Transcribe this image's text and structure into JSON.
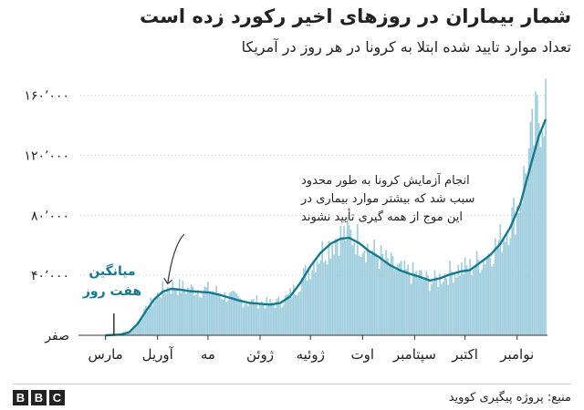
{
  "header": {
    "title": "شمار بیماران در روزهای اخیر رکورد زده است",
    "subtitle": "تعداد موارد تایید شده ابتلا به کرونا در هر روز در آمریکا"
  },
  "footer": {
    "source": "منبع: پروژه پیگیری کووید",
    "logo_letters": [
      "B",
      "B",
      "C"
    ]
  },
  "colors": {
    "bars": "#9ecddd",
    "line": "#137a8f",
    "label_line": "#137a8f",
    "text": "#222222",
    "grid": "#d0d0d0",
    "axis": "#333333"
  },
  "chart_data": {
    "type": "bar",
    "title": "شمار بیماران در روزهای اخیر رکورد زده است",
    "subtitle": "تعداد موارد تایید شده ابتلا به کرونا در هر روز در آمریکا",
    "xlabel": "",
    "ylabel": "",
    "x_range": [
      "2020-02-15",
      "2020-11-18"
    ],
    "ylim": [
      0,
      175000
    ],
    "yticks": [
      {
        "value": 0,
        "label": "صفر"
      },
      {
        "value": 40000,
        "label": "۴۰٬۰۰۰"
      },
      {
        "value": 80000,
        "label": "۸۰٬۰۰۰"
      },
      {
        "value": 120000,
        "label": "۱۲۰٬۰۰۰"
      },
      {
        "value": 160000,
        "label": "۱۶۰٬۰۰۰"
      }
    ],
    "xticks": [
      {
        "date": "2020-03-01",
        "label": "مارس"
      },
      {
        "date": "2020-04-01",
        "label": "آوریل"
      },
      {
        "date": "2020-05-01",
        "label": "مه"
      },
      {
        "date": "2020-06-01",
        "label": "ژوئن"
      },
      {
        "date": "2020-07-01",
        "label": "ژوئیه"
      },
      {
        "date": "2020-08-01",
        "label": "اوت"
      },
      {
        "date": "2020-09-01",
        "label": "سپتامبر"
      },
      {
        "date": "2020-10-01",
        "label": "اکتبر"
      },
      {
        "date": "2020-11-01",
        "label": "نوامبر"
      }
    ],
    "grid": {
      "horizontal": true,
      "style": "dotted"
    },
    "series": [
      {
        "name": "",
        "kind": "daily_bars",
        "points": [
          [
            "2020-03-01",
            0
          ],
          [
            "2020-03-05",
            200
          ],
          [
            "2020-03-10",
            700
          ],
          [
            "2020-03-15",
            2500
          ],
          [
            "2020-03-18",
            5000
          ],
          [
            "2020-03-21",
            10000
          ],
          [
            "2020-03-24",
            15000
          ],
          [
            "2020-03-27",
            20000
          ],
          [
            "2020-03-30",
            24000
          ],
          [
            "2020-04-02",
            28000
          ],
          [
            "2020-04-05",
            31000
          ],
          [
            "2020-04-08",
            32000
          ],
          [
            "2020-04-12",
            32500
          ],
          [
            "2020-04-16",
            31500
          ],
          [
            "2020-04-20",
            30500
          ],
          [
            "2020-04-24",
            31000
          ],
          [
            "2020-04-28",
            30500
          ],
          [
            "2020-05-02",
            30000
          ],
          [
            "2020-05-06",
            29000
          ],
          [
            "2020-05-10",
            26500
          ],
          [
            "2020-05-15",
            25500
          ],
          [
            "2020-05-20",
            23500
          ],
          [
            "2020-05-25",
            22000
          ],
          [
            "2020-05-30",
            22500
          ],
          [
            "2020-06-04",
            21500
          ],
          [
            "2020-06-09",
            21000
          ],
          [
            "2020-06-14",
            23000
          ],
          [
            "2020-06-18",
            26000
          ],
          [
            "2020-06-22",
            31000
          ],
          [
            "2020-06-26",
            38000
          ],
          [
            "2020-06-30",
            44000
          ],
          [
            "2020-07-04",
            51000
          ],
          [
            "2020-07-08",
            56000
          ],
          [
            "2020-07-12",
            60000
          ],
          [
            "2020-07-16",
            65000
          ],
          [
            "2020-07-20",
            66500
          ],
          [
            "2020-07-24",
            67500
          ],
          [
            "2020-07-28",
            65000
          ],
          [
            "2020-08-01",
            62500
          ],
          [
            "2020-08-05",
            57500
          ],
          [
            "2020-08-09",
            54000
          ],
          [
            "2020-08-13",
            51000
          ],
          [
            "2020-08-17",
            47000
          ],
          [
            "2020-08-21",
            44500
          ],
          [
            "2020-08-25",
            42000
          ],
          [
            "2020-08-29",
            41500
          ],
          [
            "2020-09-02",
            40500
          ],
          [
            "2020-09-06",
            38500
          ],
          [
            "2020-09-10",
            36000
          ],
          [
            "2020-09-14",
            36500
          ],
          [
            "2020-09-18",
            40500
          ],
          [
            "2020-09-22",
            42000
          ],
          [
            "2020-09-26",
            44000
          ],
          [
            "2020-09-30",
            44500
          ],
          [
            "2020-10-04",
            45000
          ],
          [
            "2020-10-08",
            48500
          ],
          [
            "2020-10-12",
            51500
          ],
          [
            "2020-10-16",
            55500
          ],
          [
            "2020-10-20",
            60000
          ],
          [
            "2020-10-24",
            68000
          ],
          [
            "2020-10-28",
            76000
          ],
          [
            "2020-11-01",
            85000
          ],
          [
            "2020-11-04",
            98000
          ],
          [
            "2020-11-07",
            114000
          ],
          [
            "2020-11-10",
            128000
          ],
          [
            "2020-11-13",
            143000
          ],
          [
            "2020-11-16",
            154000
          ],
          [
            "2020-11-18",
            157000
          ]
        ]
      },
      {
        "name": "میانگین هفت روز",
        "kind": "line",
        "points": [
          [
            "2020-03-01",
            0
          ],
          [
            "2020-03-10",
            500
          ],
          [
            "2020-03-15",
            2000
          ],
          [
            "2020-03-20",
            7500
          ],
          [
            "2020-03-25",
            16000
          ],
          [
            "2020-03-30",
            24000
          ],
          [
            "2020-04-04",
            29000
          ],
          [
            "2020-04-09",
            31000
          ],
          [
            "2020-04-14",
            30500
          ],
          [
            "2020-04-20",
            29500
          ],
          [
            "2020-04-26",
            29000
          ],
          [
            "2020-05-02",
            28500
          ],
          [
            "2020-05-08",
            27000
          ],
          [
            "2020-05-14",
            25000
          ],
          [
            "2020-05-20",
            23000
          ],
          [
            "2020-05-26",
            21500
          ],
          [
            "2020-06-01",
            21000
          ],
          [
            "2020-06-07",
            20500
          ],
          [
            "2020-06-13",
            21500
          ],
          [
            "2020-06-19",
            26000
          ],
          [
            "2020-06-25",
            35000
          ],
          [
            "2020-07-01",
            46000
          ],
          [
            "2020-07-07",
            55000
          ],
          [
            "2020-07-13",
            61000
          ],
          [
            "2020-07-19",
            64500
          ],
          [
            "2020-07-24",
            65000
          ],
          [
            "2020-07-30",
            61500
          ],
          [
            "2020-08-05",
            56000
          ],
          [
            "2020-08-11",
            52000
          ],
          [
            "2020-08-17",
            47000
          ],
          [
            "2020-08-23",
            43500
          ],
          [
            "2020-08-29",
            41000
          ],
          [
            "2020-09-04",
            39000
          ],
          [
            "2020-09-10",
            36500
          ],
          [
            "2020-09-16",
            38000
          ],
          [
            "2020-09-22",
            40500
          ],
          [
            "2020-09-28",
            42500
          ],
          [
            "2020-10-04",
            43500
          ],
          [
            "2020-10-10",
            48500
          ],
          [
            "2020-10-16",
            53500
          ],
          [
            "2020-10-22",
            61000
          ],
          [
            "2020-10-28",
            72000
          ],
          [
            "2020-11-03",
            88000
          ],
          [
            "2020-11-09",
            113000
          ],
          [
            "2020-11-14",
            133000
          ],
          [
            "2020-11-18",
            144000
          ]
        ]
      }
    ],
    "annotations": [
      {
        "text_lines": [
          "انجام آزمایش کرونا به طور محدود",
          "سبب شد که بیشتر موارد بیماری در",
          "این موج از همه گیری تأیید نشوند"
        ],
        "target_date": "2020-04-07",
        "target_value": 32000
      },
      {
        "text_lines": [
          "میانگین",
          "هفت روز"
        ],
        "target_date": "2020-03-06",
        "target_value": 0
      }
    ]
  }
}
